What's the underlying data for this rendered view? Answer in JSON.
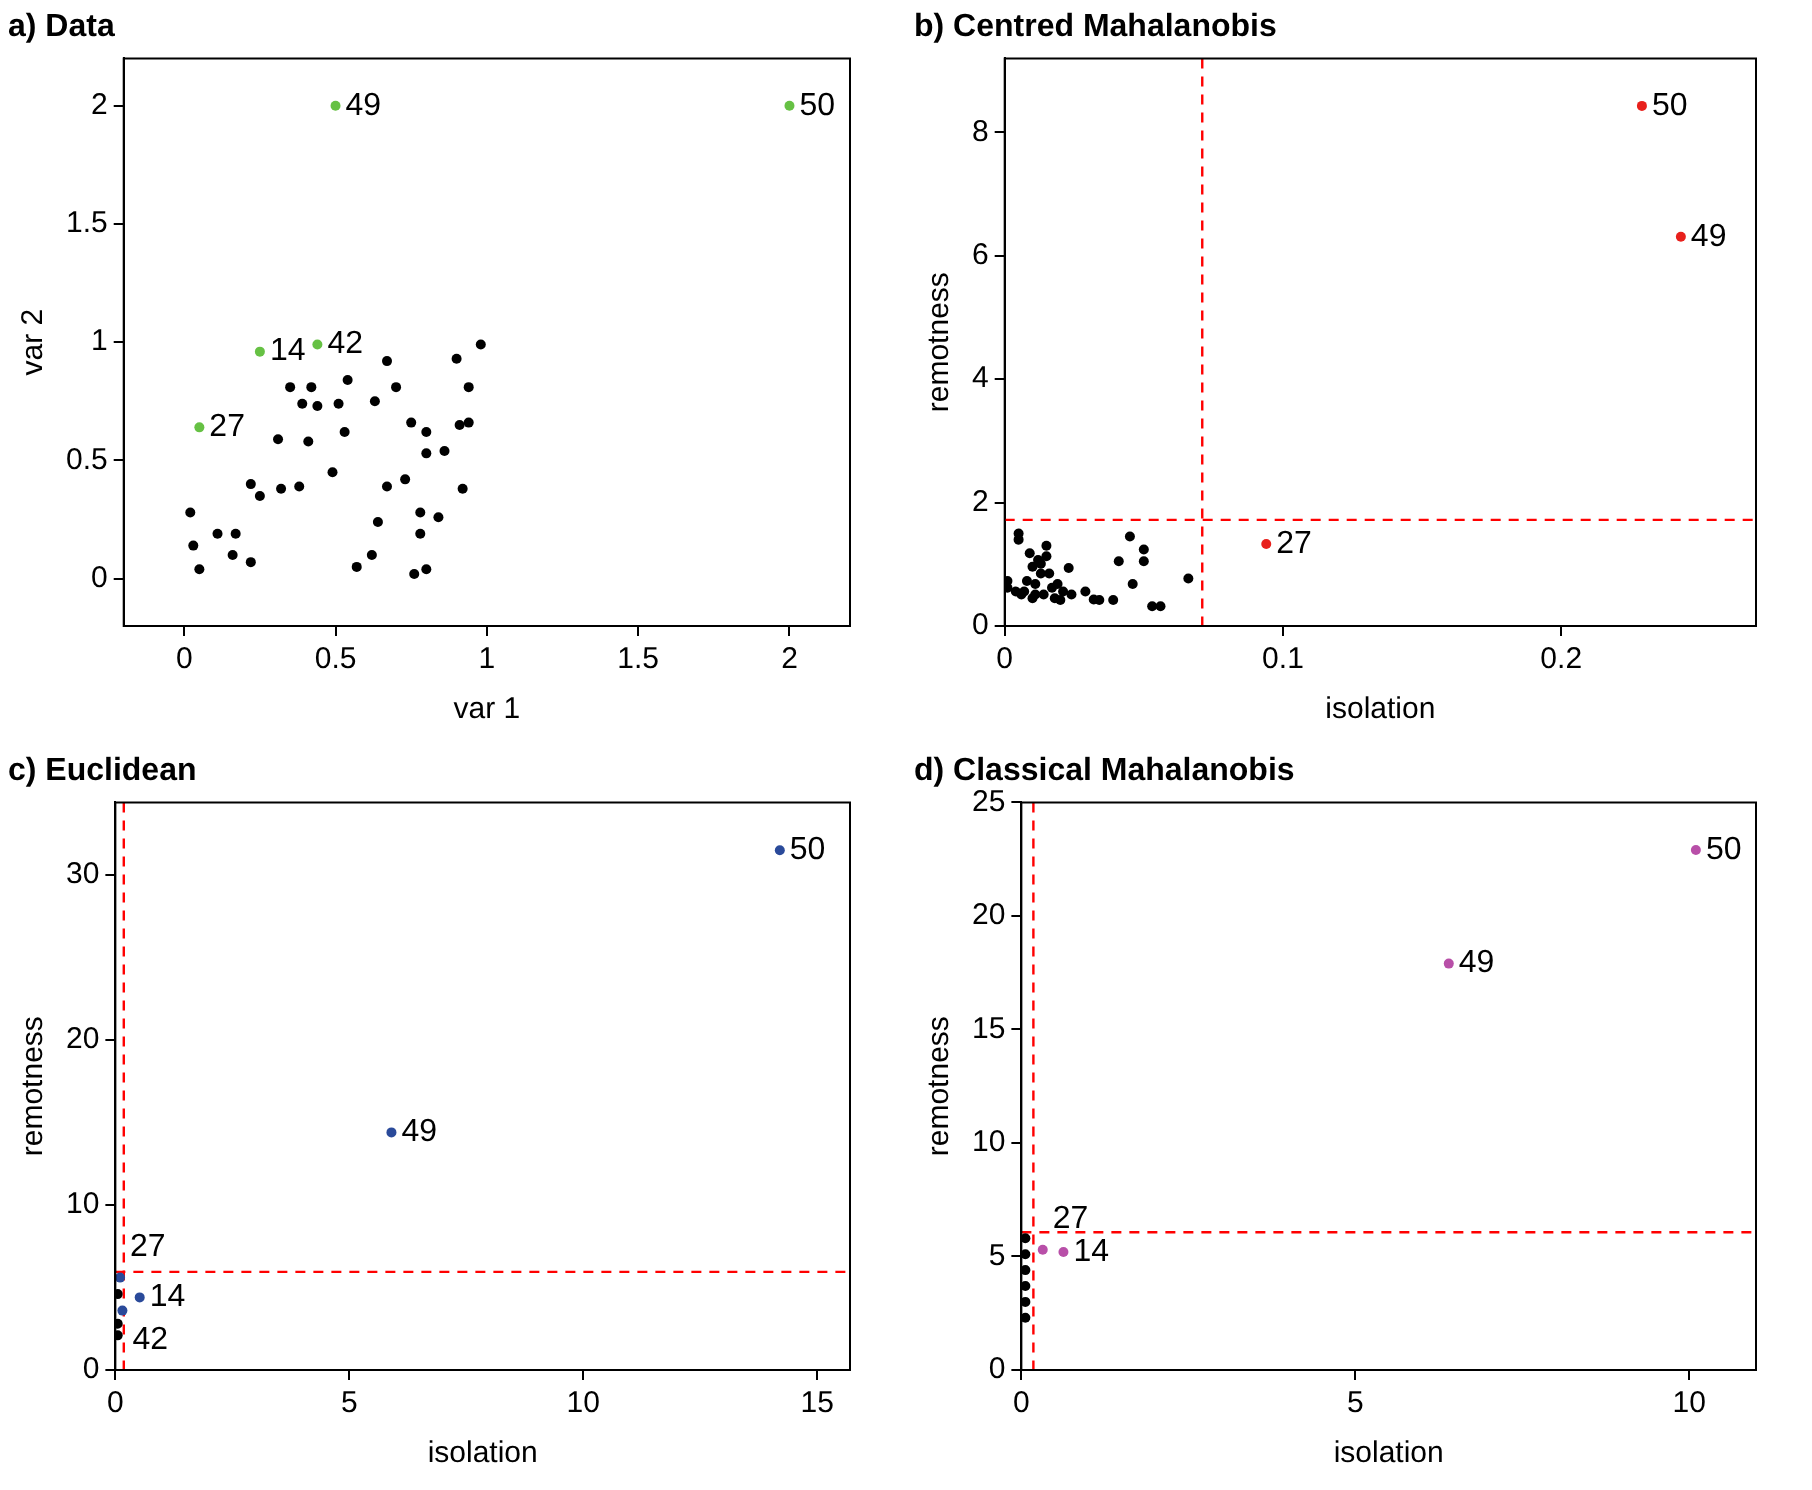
{
  "chart_data": [
    {
      "type": "scatter",
      "title": "a) Data",
      "xlabel": "var 1",
      "ylabel": "var 2",
      "xlim": [
        -0.2,
        2.2
      ],
      "ylim": [
        -0.2,
        2.2
      ],
      "xticks": [
        0,
        0.5,
        1,
        1.5,
        2
      ],
      "yticks": [
        0,
        0.5,
        1,
        1.5,
        2
      ],
      "grid": false,
      "legend": false,
      "marker": "circle",
      "series": [
        {
          "color": "#000000",
          "x": [
            0.02,
            0.03,
            0.05,
            0.11,
            0.17,
            0.16,
            0.22,
            0.22,
            0.25,
            0.31,
            0.32,
            0.38,
            0.35,
            0.39,
            0.42,
            0.44,
            0.41,
            0.54,
            0.51,
            0.53,
            0.49,
            0.63,
            0.67,
            0.7,
            0.67,
            0.64,
            0.57,
            0.62,
            0.73,
            0.75,
            0.8,
            0.8,
            0.86,
            0.78,
            0.78,
            0.84,
            0.76,
            0.8,
            0.9,
            0.94,
            0.91,
            0.94,
            0.92,
            0.98
          ],
          "values": [
            0.28,
            0.14,
            0.04,
            0.19,
            0.19,
            0.1,
            0.07,
            0.4,
            0.35,
            0.59,
            0.38,
            0.39,
            0.81,
            0.74,
            0.81,
            0.73,
            0.58,
            0.84,
            0.74,
            0.62,
            0.45,
            0.75,
            0.92,
            0.81,
            0.39,
            0.24,
            0.05,
            0.1,
            0.42,
            0.66,
            0.62,
            0.53,
            0.54,
            0.28,
            0.19,
            0.26,
            0.02,
            0.04,
            0.93,
            0.81,
            0.65,
            0.66,
            0.38,
            0.99
          ]
        },
        {
          "color": "#66c144",
          "x": [
            0.5,
            2,
            0.25,
            0.44,
            0.05
          ],
          "values": [
            2,
            2,
            0.96,
            0.99,
            0.64
          ]
        }
      ],
      "annotations": [
        {
          "text": "49",
          "x": 0.5,
          "y": 2
        },
        {
          "text": "50",
          "x": 2,
          "y": 2
        },
        {
          "text": "14",
          "x": 0.25,
          "y": 0.96
        },
        {
          "text": "42",
          "x": 0.44,
          "y": 0.99
        },
        {
          "text": "27",
          "x": 0.05,
          "y": 0.64
        }
      ]
    },
    {
      "type": "scatter",
      "title": "b) Centred Mahalanobis",
      "xlabel": "isolation",
      "ylabel": "remotness",
      "xlim": [
        0,
        0.27
      ],
      "ylim": [
        0,
        9.2
      ],
      "xticks": [
        0,
        0.1,
        0.2
      ],
      "yticks": [
        0,
        2,
        4,
        6,
        8
      ],
      "grid": false,
      "legend": false,
      "marker": "circle",
      "series": [
        {
          "color": "#000000",
          "x": [
            0.001,
            0.005,
            0.005,
            0.007,
            0.009,
            0.01,
            0.012,
            0.013,
            0.014,
            0.015,
            0.017,
            0.018,
            0.02,
            0.023,
            0.032,
            0.034,
            0.039,
            0.041,
            0.045,
            0.046,
            0.05,
            0.05,
            0.053,
            0.056,
            0.066,
            0.004,
            0.008,
            0.011,
            0.013,
            0.019,
            0.029,
            0.011,
            0.006,
            0.016,
            0.021,
            0.015,
            0.01,
            0.024,
            0.001
          ],
          "values": [
            0.73,
            1.5,
            1.4,
            0.56,
            1.18,
            0.96,
            1.07,
            0.85,
            0.51,
            1.3,
            0.62,
            0.45,
            0.42,
            0.94,
            0.43,
            0.42,
            0.42,
            1.05,
            1.45,
            0.68,
            1.24,
            1.05,
            0.32,
            0.32,
            0.77,
            0.56,
            0.73,
            0.68,
            1.01,
            0.68,
            0.56,
            0.51,
            0.51,
            0.85,
            0.56,
            1.13,
            0.45,
            0.51,
            0.62
          ]
        },
        {
          "color": "#e8201c",
          "x": [
            0.229,
            0.243,
            0.094
          ],
          "values": [
            8.43,
            6.31,
            1.33
          ]
        }
      ],
      "annotations": [
        {
          "text": "50",
          "x": 0.229,
          "y": 8.43
        },
        {
          "text": "49",
          "x": 0.243,
          "y": 6.31
        },
        {
          "text": "27",
          "x": 0.094,
          "y": 1.33
        }
      ],
      "ref_lines": [
        {
          "axis": "x",
          "value": 0.071,
          "color": "#ff0000",
          "line_style": "dashed"
        },
        {
          "axis": "y",
          "value": 1.72,
          "color": "#ff0000",
          "line_style": "dashed"
        }
      ]
    },
    {
      "type": "scatter",
      "title": "c) Euclidean",
      "xlabel": "isolation",
      "ylabel": "remotness",
      "xlim": [
        0,
        15.7
      ],
      "ylim": [
        0,
        34.4
      ],
      "xticks": [
        0,
        5,
        10,
        15
      ],
      "yticks": [
        0,
        10,
        20,
        30
      ],
      "grid": false,
      "legend": false,
      "marker": "circle",
      "series": [
        {
          "color": "#000000",
          "x": [
            0.05,
            0.05,
            0.05
          ],
          "values": [
            2.1,
            2.8,
            4.6
          ]
        },
        {
          "color": "#2a4a9a",
          "x": [
            14.2,
            5.9,
            0.52,
            0.1,
            0.15
          ],
          "values": [
            31.5,
            14.4,
            4.4,
            5.6,
            3.6
          ]
        }
      ],
      "annotations": [
        {
          "text": "50",
          "x": 14.2,
          "y": 31.5
        },
        {
          "text": "49",
          "x": 5.9,
          "y": 14.4
        },
        {
          "text": "14",
          "x": 0.52,
          "y": 4.4
        },
        {
          "text": "27",
          "x": 0.1,
          "y": 5.6
        },
        {
          "text": "42",
          "x": 0.15,
          "y": 3.6
        }
      ],
      "ref_lines": [
        {
          "axis": "x",
          "value": 0.18,
          "color": "#ff0000",
          "line_style": "dashed"
        },
        {
          "axis": "y",
          "value": 5.95,
          "color": "#ff0000",
          "line_style": "dashed"
        }
      ]
    },
    {
      "type": "scatter",
      "title": "d) Classical Mahalanobis",
      "xlabel": "isolation",
      "ylabel": "remotness",
      "xlim": [
        0,
        11
      ],
      "ylim": [
        0,
        25
      ],
      "xticks": [
        0,
        5,
        10
      ],
      "yticks": [
        0,
        5,
        10,
        15,
        20,
        25
      ],
      "grid": false,
      "legend": false,
      "marker": "circle",
      "series": [
        {
          "color": "#000000",
          "x": [
            0.06,
            0.06,
            0.06,
            0.06,
            0.06,
            0.06
          ],
          "values": [
            2.3,
            3.0,
            3.7,
            4.4,
            5.1,
            5.8
          ]
        },
        {
          "color": "#b84fa8",
          "x": [
            10.1,
            6.4,
            0.63,
            0.32
          ],
          "values": [
            22.9,
            17.9,
            5.2,
            5.3
          ]
        }
      ],
      "annotations": [
        {
          "text": "50",
          "x": 10.1,
          "y": 22.9
        },
        {
          "text": "49",
          "x": 6.4,
          "y": 17.9
        },
        {
          "text": "14",
          "x": 0.63,
          "y": 5.2
        },
        {
          "text": "27",
          "x": 0.32,
          "y": 5.3
        }
      ],
      "ref_lines": [
        {
          "axis": "x",
          "value": 0.18,
          "color": "#ff0000",
          "line_style": "dashed"
        },
        {
          "axis": "y",
          "value": 6.07,
          "color": "#ff0000",
          "line_style": "dashed"
        }
      ]
    }
  ]
}
